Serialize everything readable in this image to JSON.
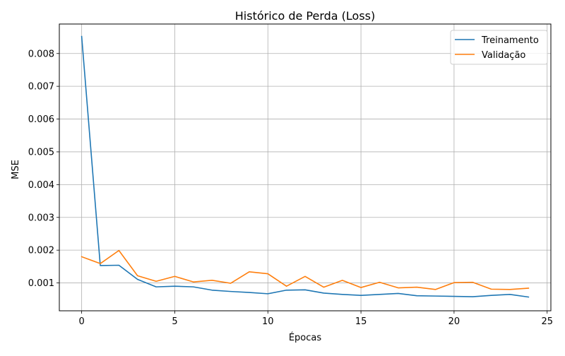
{
  "chart_data": {
    "type": "line",
    "title": "Histórico de Perda (Loss)",
    "xlabel": "Épocas",
    "ylabel": "MSE",
    "xlim": [
      -1.2,
      25.2
    ],
    "ylim": [
      0.00015,
      0.0089
    ],
    "xticks": [
      0,
      5,
      10,
      15,
      20,
      25
    ],
    "xtick_labels": [
      "0",
      "5",
      "10",
      "15",
      "20",
      "25"
    ],
    "yticks": [
      0.001,
      0.002,
      0.003,
      0.004,
      0.005,
      0.006,
      0.007,
      0.008
    ],
    "ytick_labels": [
      "0.001",
      "0.002",
      "0.003",
      "0.004",
      "0.005",
      "0.006",
      "0.007",
      "0.008"
    ],
    "grid": true,
    "legend_position": "top-right",
    "x": [
      0,
      1,
      2,
      3,
      4,
      5,
      6,
      7,
      8,
      9,
      10,
      11,
      12,
      13,
      14,
      15,
      16,
      17,
      18,
      19,
      20,
      21,
      22,
      23,
      24
    ],
    "series": [
      {
        "name": "Treinamento",
        "color": "#1f77b4",
        "values": [
          0.00852,
          0.00153,
          0.00154,
          0.00111,
          0.00088,
          0.0009,
          0.00088,
          0.00078,
          0.00074,
          0.00071,
          0.00067,
          0.00078,
          0.00079,
          0.00069,
          0.00065,
          0.00062,
          0.00065,
          0.00068,
          0.00061,
          0.0006,
          0.00059,
          0.00058,
          0.00062,
          0.00065,
          0.00057
        ]
      },
      {
        "name": "Validação",
        "color": "#ff7f0e",
        "values": [
          0.0018,
          0.00159,
          0.00199,
          0.00122,
          0.00105,
          0.0012,
          0.00103,
          0.00108,
          0.00099,
          0.00134,
          0.00128,
          0.0009,
          0.0012,
          0.00087,
          0.00108,
          0.00086,
          0.00102,
          0.00085,
          0.00087,
          0.0008,
          0.00101,
          0.00102,
          0.00081,
          0.0008,
          0.00084
        ]
      }
    ]
  }
}
